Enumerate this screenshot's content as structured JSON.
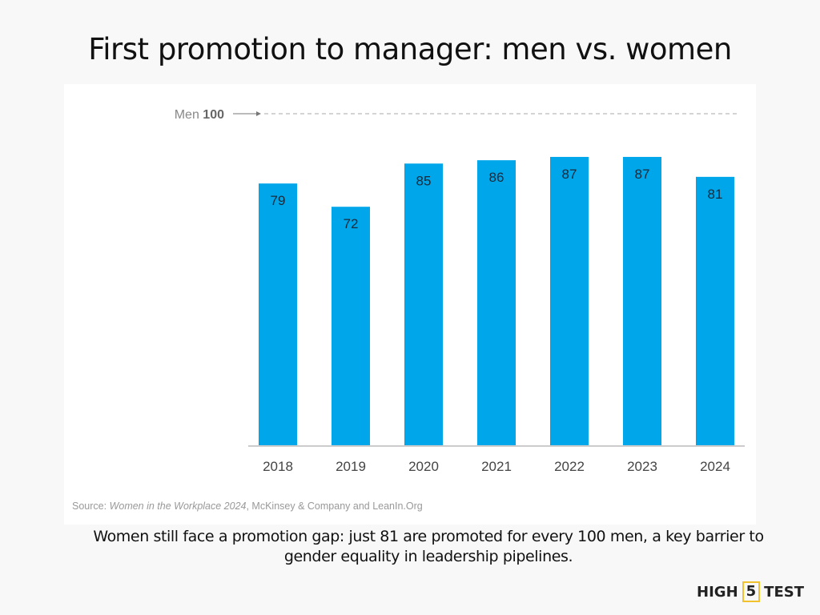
{
  "title": "First promotion to manager: men vs. women",
  "chart_data": {
    "type": "bar",
    "title": "First promotion to manager: men vs. women",
    "categories": [
      "2018",
      "2019",
      "2020",
      "2021",
      "2022",
      "2023",
      "2024"
    ],
    "values": [
      79,
      72,
      85,
      86,
      87,
      87,
      81
    ],
    "reference_line": {
      "label_prefix": "Men",
      "label_value": "100",
      "value": 100
    },
    "ylim": [
      0,
      100
    ],
    "bar_color": "#00a6ea",
    "xlabel": "",
    "ylabel": "",
    "source_prefix": "Source: ",
    "source_title": "Women in the Workplace 2024",
    "source_rest": ", McKinsey & Company and LeanIn.Org"
  },
  "caption": "Women still face a promotion gap: just 81 are promoted for every 100 men, a key barrier to gender equality in leadership pipelines.",
  "logo": {
    "left": "HIGH",
    "mid": "5",
    "right": "TEST"
  }
}
